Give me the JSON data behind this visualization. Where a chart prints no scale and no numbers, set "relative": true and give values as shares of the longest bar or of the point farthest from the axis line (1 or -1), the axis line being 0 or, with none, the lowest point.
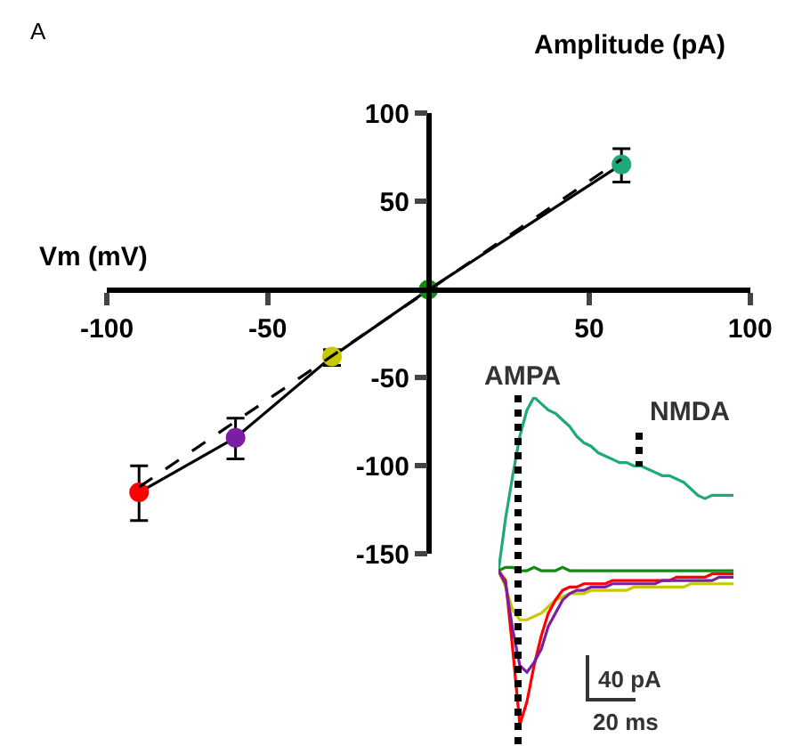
{
  "chart_data": [
    {
      "type": "line",
      "xlabel": "Vm (mV)",
      "ylabel": "Amplitude (pA)",
      "annotations": [
        "A"
      ],
      "x": [
        -90,
        -60,
        -30,
        0,
        60
      ],
      "xlim": [
        -100,
        100
      ],
      "xticks": [
        -100,
        -50,
        50,
        100
      ],
      "ylim": [
        -150,
        100
      ],
      "yticks": [
        -150,
        -100,
        -50,
        50,
        100
      ],
      "series": [
        {
          "type": "line",
          "color": "#000000",
          "colors": [
            "#ff0000",
            "#7a1fa2",
            "#c8c800",
            "#138a13",
            "#1fa97a"
          ],
          "marker": "circle",
          "line_style": "solid",
          "values": [
            -115,
            -84,
            -38,
            0,
            71
          ],
          "errors": [
            [
              -131,
              -100
            ],
            [
              -96,
              -73
            ],
            [
              -43,
              -34
            ],
            null,
            [
              61,
              80
            ]
          ]
        },
        {
          "type": "line",
          "color": "#000000",
          "marker": "none",
          "line_style": "dashed",
          "x": [
            -90,
            60
          ],
          "values": [
            -112,
            74
          ]
        }
      ]
    },
    {
      "type": "line",
      "relative": true,
      "annotations": [
        "AMPA",
        "NMDA",
        "40 pA",
        "20 ms"
      ],
      "tick_labels": false,
      "categories": [
        null,
        null,
        null,
        null,
        null,
        null,
        null,
        null,
        null,
        null,
        null,
        null,
        null,
        null,
        null,
        null,
        null,
        null,
        null,
        null,
        null,
        null,
        null,
        null,
        null,
        null,
        null,
        null,
        null,
        null,
        null,
        null,
        null,
        null
      ],
      "series": [
        {
          "color": "#1fa97a",
          "values": [
            0.47,
            0.63,
            0.76,
            0.88,
            0.96,
            1.0,
            0.98,
            0.96,
            0.95,
            0.93,
            0.91,
            0.88,
            0.86,
            0.85,
            0.83,
            0.82,
            0.81,
            0.8,
            0.8,
            0.79,
            0.79,
            0.78,
            0.77,
            0.76,
            0.76,
            0.75,
            0.74,
            0.72,
            0.7,
            0.69,
            0.7,
            0.7,
            0.7,
            0.7
          ]
        },
        {
          "color": "#138a13",
          "values": [
            0.47,
            0.48,
            0.48,
            0.47,
            0.47,
            0.48,
            0.47,
            0.47,
            0.47,
            0.48,
            0.47,
            0.47,
            0.47,
            0.47,
            0.47,
            0.47,
            0.47,
            0.47,
            0.47,
            0.47,
            0.47,
            0.47,
            0.47,
            0.47,
            0.47,
            0.47,
            0.47,
            0.47,
            0.47,
            0.47,
            0.47,
            0.47,
            0.47,
            0.47
          ]
        },
        {
          "color": "#c8c800",
          "values": [
            0.47,
            0.42,
            0.35,
            0.32,
            0.32,
            0.33,
            0.34,
            0.36,
            0.38,
            0.39,
            0.4,
            0.4,
            0.4,
            0.41,
            0.41,
            0.41,
            0.41,
            0.41,
            0.41,
            0.42,
            0.42,
            0.42,
            0.42,
            0.42,
            0.42,
            0.42,
            0.42,
            0.43,
            0.43,
            0.43,
            0.43,
            0.43,
            0.43,
            0.43
          ]
        },
        {
          "color": "#ff0000",
          "values": [
            0.47,
            0.44,
            0.23,
            0,
            0.07,
            0.18,
            0.27,
            0.34,
            0.38,
            0.41,
            0.42,
            0.42,
            0.43,
            0.43,
            0.43,
            0.43,
            0.44,
            0.44,
            0.44,
            0.44,
            0.44,
            0.44,
            0.44,
            0.44,
            0.44,
            0.45,
            0.45,
            0.45,
            0.45,
            0.45,
            0.46,
            0.46,
            0.46,
            0.46
          ]
        },
        {
          "color": "#7a1fa2",
          "values": [
            0.47,
            0.43,
            0.29,
            0.18,
            0.16,
            0.19,
            0.23,
            0.3,
            0.34,
            0.38,
            0.4,
            0.41,
            0.41,
            0.42,
            0.42,
            0.42,
            0.43,
            0.43,
            0.43,
            0.43,
            0.43,
            0.43,
            0.43,
            0.44,
            0.44,
            0.44,
            0.44,
            0.44,
            0.44,
            0.44,
            0.44,
            0.45,
            0.45,
            0.45
          ]
        }
      ]
    }
  ]
}
